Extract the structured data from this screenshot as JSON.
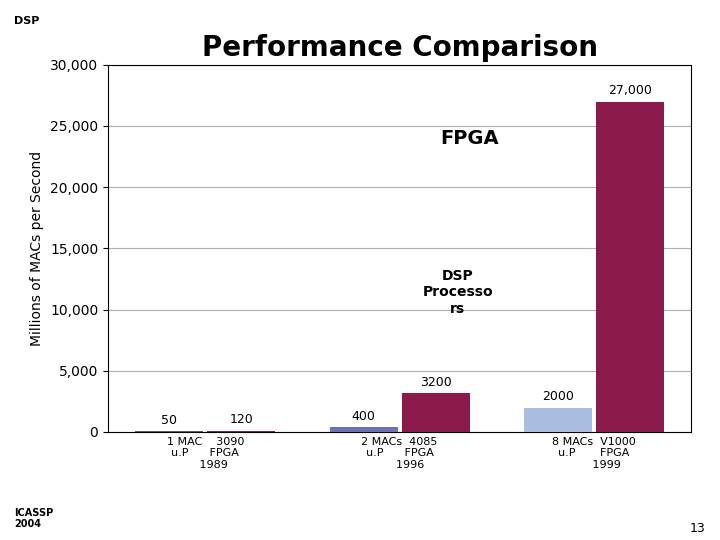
{
  "chart_data": {
    "type": "bar",
    "title": "Performance Comparison",
    "ylabel": "Millions of MACs per Second",
    "categories": [
      "1 MAC    3090\nu.P      FPGA\n     1989",
      "2 MACs  4085\nu.P      FPGA\n      1996",
      "8 MACs  V1000\nu.P       FPGA\n       1999"
    ],
    "series": [
      {
        "values": [
          50,
          400,
          2000
        ],
        "colors": [
          "#5a5a5a",
          "#7070b8",
          "#aabde0"
        ]
      },
      {
        "values": [
          120,
          3200,
          27000
        ],
        "value_labels": [
          "120",
          "3200",
          "27,000"
        ],
        "color": "#8b1a4a"
      }
    ],
    "ylim": [
      0,
      30000
    ],
    "yticks": [
      0,
      {
        "value": 5000,
        "label": "5,000"
      },
      {
        "value": 10000,
        "label": "10,000"
      },
      {
        "value": 15000,
        "label": "15,000"
      },
      {
        "value": 20000,
        "label": "20,000"
      },
      {
        "value": 25000,
        "label": "25,000"
      },
      {
        "value": 30000,
        "label": "30,000"
      }
    ],
    "grid": true,
    "data_labels": true,
    "annotations": [
      "FPGA",
      "DSP\nProcesso\nrs",
      "DSP",
      "ICASSP\n2004",
      "13"
    ]
  }
}
